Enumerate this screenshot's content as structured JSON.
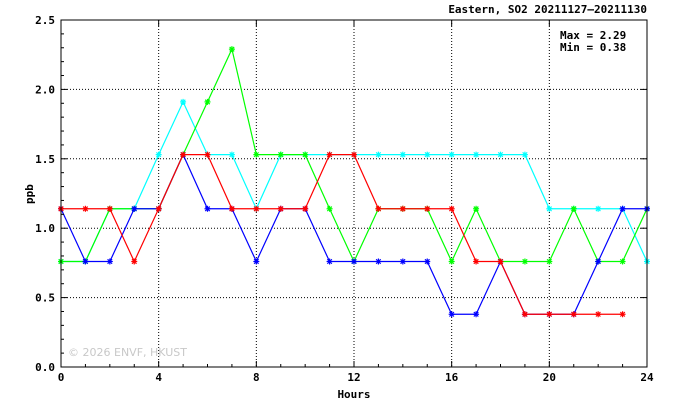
{
  "chart_data": {
    "type": "line",
    "title": "Eastern, SO2 20211127—20211130",
    "xlabel": "Hours",
    "ylabel": "ppb",
    "xlim": [
      0,
      24
    ],
    "ylim": [
      0,
      2.5
    ],
    "x_ticks": [
      0,
      4,
      8,
      12,
      16,
      20,
      24
    ],
    "x_tick_labels": [
      "0",
      "4",
      "8",
      "12",
      "16",
      "20",
      "24"
    ],
    "y_ticks": [
      0,
      0.5,
      1,
      1.5,
      2,
      2.5
    ],
    "y_tick_labels": [
      "0.0",
      "0.5",
      "1.0",
      "1.5",
      "2.0",
      "2.5"
    ],
    "grid": true,
    "max_label": "Max = 2.29",
    "min_label": "Min = 0.38",
    "watermark": "© 2026 ENVF, HKUST",
    "series": [
      {
        "color": "#00ffff",
        "x": [
          0,
          1,
          2,
          3,
          4,
          5,
          6,
          7,
          8,
          9,
          10,
          11,
          12,
          13,
          14,
          15,
          16,
          17,
          18,
          19,
          20,
          21,
          22,
          23,
          24
        ],
        "values": [
          0.76,
          0.76,
          1.14,
          1.14,
          1.53,
          1.91,
          1.53,
          1.53,
          1.14,
          1.53,
          1.53,
          1.53,
          1.53,
          1.53,
          1.53,
          1.53,
          1.53,
          1.53,
          1.53,
          1.53,
          1.14,
          1.14,
          1.14,
          1.14,
          0.76
        ]
      },
      {
        "color": "#00ff00",
        "x": [
          0,
          1,
          2,
          3,
          4,
          5,
          6,
          7,
          8,
          9,
          10,
          11,
          12,
          13,
          14,
          15,
          16,
          17,
          18,
          19,
          20,
          21,
          22,
          23,
          24
        ],
        "values": [
          0.76,
          0.76,
          1.14,
          1.14,
          1.14,
          1.53,
          1.91,
          2.29,
          1.53,
          1.53,
          1.53,
          1.14,
          0.76,
          1.14,
          1.14,
          1.14,
          0.76,
          1.14,
          0.76,
          0.76,
          0.76,
          1.14,
          0.76,
          0.76,
          1.14
        ]
      },
      {
        "color": "#0000ff",
        "x": [
          0,
          1,
          2,
          3,
          4,
          5,
          6,
          7,
          8,
          9,
          10,
          11,
          12,
          13,
          14,
          15,
          16,
          17,
          18,
          19,
          20,
          21,
          22,
          23,
          24
        ],
        "values": [
          1.14,
          0.76,
          0.76,
          1.14,
          1.14,
          1.53,
          1.14,
          1.14,
          0.76,
          1.14,
          1.14,
          0.76,
          0.76,
          0.76,
          0.76,
          0.76,
          0.38,
          0.38,
          0.76,
          0.38,
          0.38,
          0.38,
          0.76,
          1.14,
          1.14
        ]
      },
      {
        "color": "#ff0000",
        "x": [
          0,
          1,
          2,
          3,
          4,
          5,
          6,
          7,
          8,
          9,
          10,
          11,
          12,
          13,
          14,
          15,
          16,
          17,
          18,
          19,
          20,
          21,
          22,
          23
        ],
        "values": [
          1.14,
          1.14,
          1.14,
          0.76,
          1.14,
          1.53,
          1.53,
          1.14,
          1.14,
          1.14,
          1.14,
          1.53,
          1.53,
          1.14,
          1.14,
          1.14,
          1.14,
          0.76,
          0.76,
          0.38,
          0.38,
          0.38,
          0.38,
          0.38
        ]
      }
    ]
  }
}
